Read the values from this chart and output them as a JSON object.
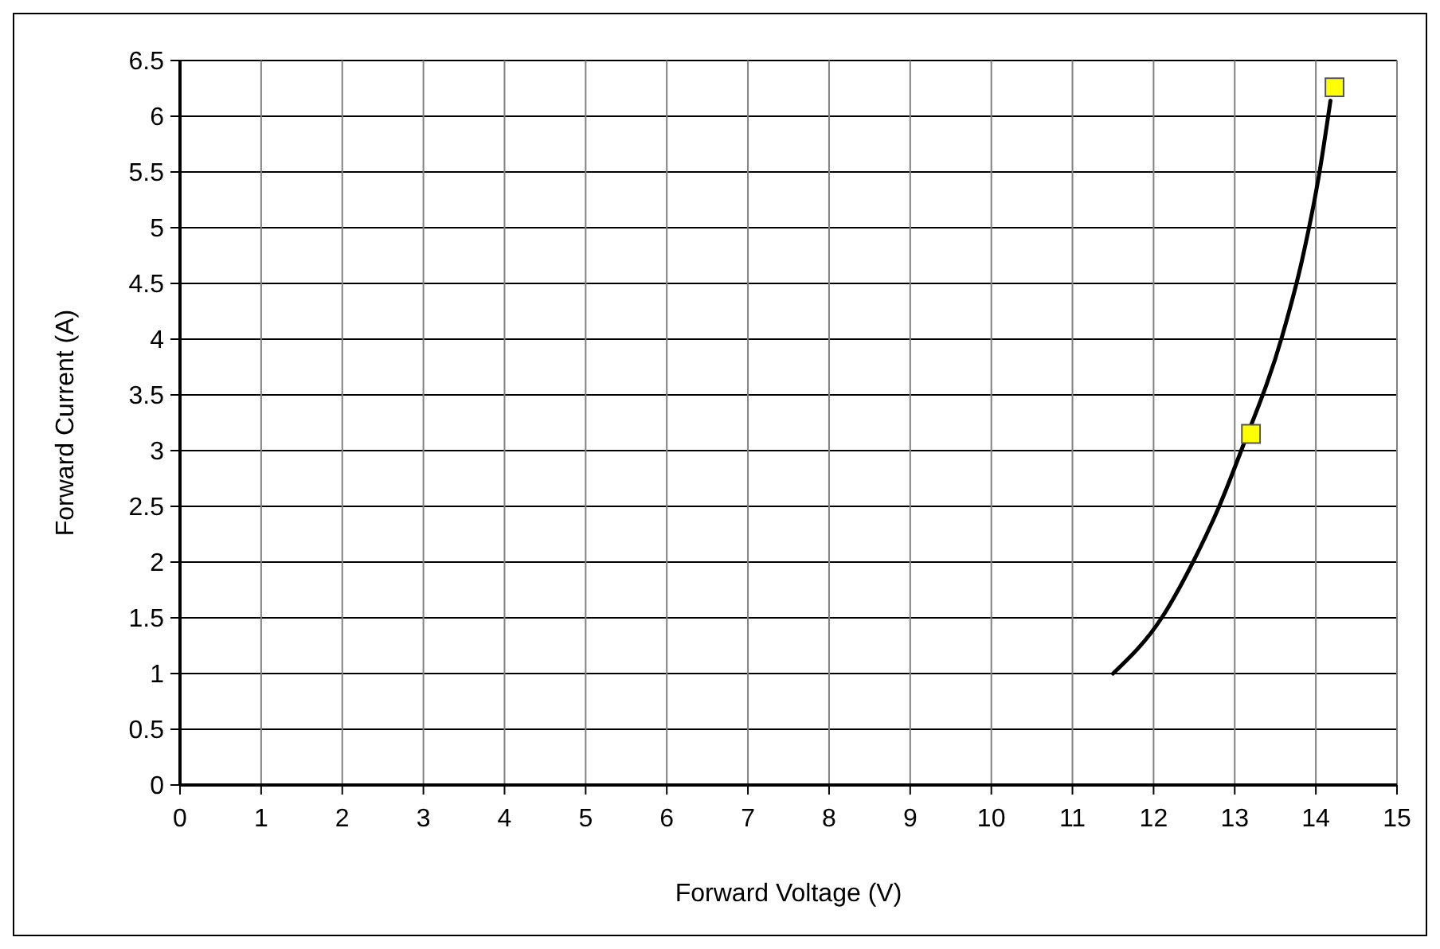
{
  "chart_data": {
    "type": "line",
    "xlabel": "Forward Voltage (V)",
    "ylabel": "Forward Current (A)",
    "xlim": [
      0,
      15
    ],
    "xticks": [
      0,
      1,
      2,
      3,
      4,
      5,
      6,
      7,
      8,
      9,
      10,
      11,
      12,
      13,
      14,
      15
    ],
    "ylim": [
      0,
      6.5
    ],
    "yticks": [
      0,
      0.5,
      1,
      1.5,
      2,
      2.5,
      3,
      3.5,
      4,
      4.5,
      5,
      5.5,
      6,
      6.5
    ],
    "grid": true,
    "series": [
      {
        "type": "line",
        "color": "#000000",
        "marker": "none",
        "x": [
          11.5,
          12.1,
          12.5,
          12.82,
          13.08,
          13.59,
          13.83,
          14.05,
          14.18
        ],
        "values": [
          1.0,
          1.5,
          2.02,
          2.52,
          3.0,
          4.04,
          4.71,
          5.52,
          6.14
        ]
      },
      {
        "type": "scatter",
        "color": "#ffff00",
        "marker": "square",
        "x": [
          13.2,
          14.23
        ],
        "values": [
          3.15,
          6.26
        ]
      }
    ]
  }
}
